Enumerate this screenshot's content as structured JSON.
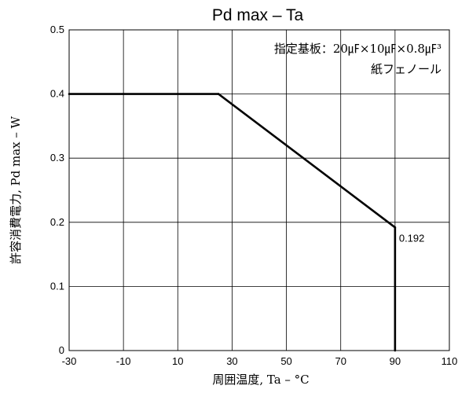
{
  "chart_data": {
    "type": "line",
    "title": "Pd max – Ta",
    "xlabel": "周囲温度, Ta – °C",
    "ylabel": "許容消費電力, Pd max – W",
    "xlim": [
      -30,
      110
    ],
    "ylim": [
      0,
      0.5
    ],
    "x_ticks": [
      -30,
      -10,
      10,
      30,
      50,
      70,
      90,
      110
    ],
    "x_tick_labels": [
      "-30",
      "-10",
      "10",
      "30",
      "50",
      "70",
      "90",
      "110"
    ],
    "y_ticks": [
      0,
      0.1,
      0.2,
      0.3,
      0.4,
      0.5
    ],
    "y_tick_labels": [
      "0",
      "0.1",
      "0.2",
      "0.3",
      "0.4",
      "0.5"
    ],
    "grid": true,
    "series": [
      {
        "x": [
          -30,
          25,
          90,
          90
        ],
        "y": [
          0.4,
          0.4,
          0.192,
          0
        ],
        "color": "#000000"
      }
    ],
    "annotations": {
      "data_label": "0.192",
      "board_line1": "指定基板：20㎌×10㎌×0.8㎌³",
      "board_line2": "紙フェノール"
    }
  }
}
